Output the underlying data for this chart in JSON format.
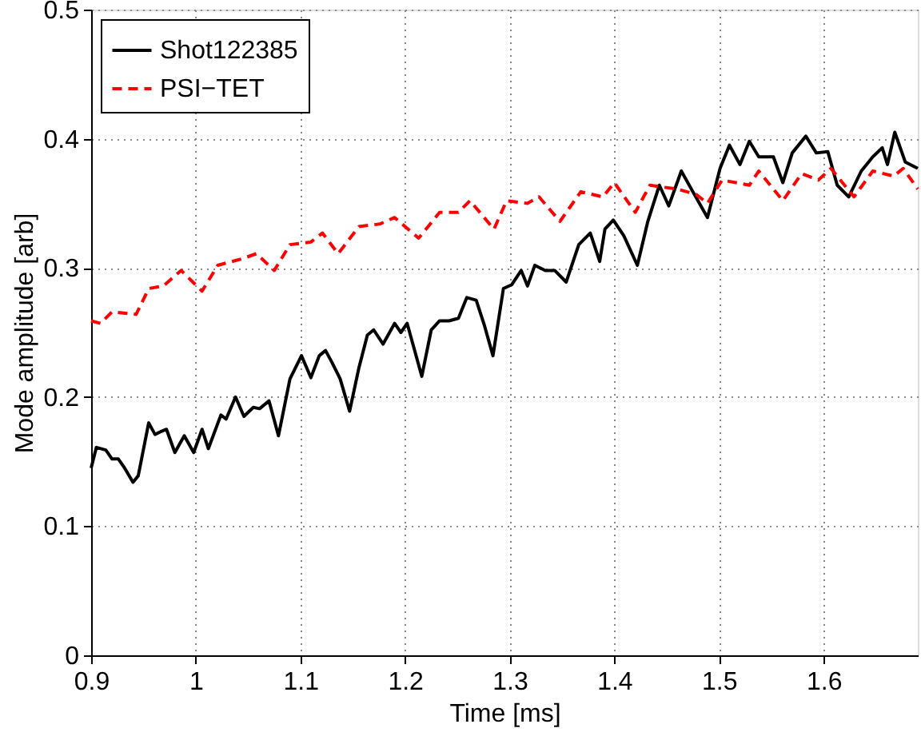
{
  "chart_data": {
    "type": "line",
    "xlabel": "Time [ms]",
    "ylabel": "Mode amplitude [arb]",
    "xlim": [
      0.9,
      1.69
    ],
    "ylim": [
      0,
      0.5
    ],
    "xticks": [
      0.9,
      1,
      1.1,
      1.2,
      1.3,
      1.4,
      1.5,
      1.6
    ],
    "yticks": [
      0,
      0.1,
      0.2,
      0.3,
      0.4,
      0.5
    ],
    "grid": true,
    "legend": "top left",
    "series": [
      {
        "name": "Shot122385",
        "color": "#000000",
        "line_style": "solid",
        "x": [
          0.9,
          0.905,
          0.914,
          0.92,
          0.926,
          0.932,
          0.94,
          0.945,
          0.955,
          0.961,
          0.966,
          0.972,
          0.98,
          0.989,
          0.998,
          1.006,
          1.012,
          1.024,
          1.029,
          1.038,
          1.046,
          1.055,
          1.061,
          1.07,
          1.079,
          1.09,
          1.101,
          1.11,
          1.118,
          1.124,
          1.13,
          1.138,
          1.147,
          1.156,
          1.164,
          1.17,
          1.179,
          1.19,
          1.196,
          1.202,
          1.216,
          1.225,
          1.233,
          1.242,
          1.251,
          1.259,
          1.268,
          1.276,
          1.284,
          1.294,
          1.302,
          1.311,
          1.317,
          1.324,
          1.334,
          1.343,
          1.354,
          1.366,
          1.377,
          1.386,
          1.391,
          1.399,
          1.409,
          1.422,
          1.432,
          1.443,
          1.452,
          1.464,
          1.475,
          1.489,
          1.501,
          1.51,
          1.52,
          1.529,
          1.538,
          1.552,
          1.561,
          1.57,
          1.583,
          1.593,
          1.604,
          1.613,
          1.624,
          1.636,
          1.647,
          1.656,
          1.661,
          1.668,
          1.678,
          1.69
        ],
        "values": [
          0.145,
          0.161,
          0.159,
          0.152,
          0.152,
          0.145,
          0.134,
          0.139,
          0.18,
          0.171,
          0.173,
          0.175,
          0.157,
          0.17,
          0.157,
          0.175,
          0.16,
          0.186,
          0.183,
          0.2,
          0.185,
          0.192,
          0.191,
          0.197,
          0.17,
          0.214,
          0.232,
          0.215,
          0.232,
          0.236,
          0.227,
          0.214,
          0.189,
          0.223,
          0.248,
          0.252,
          0.241,
          0.257,
          0.25,
          0.257,
          0.216,
          0.252,
          0.259,
          0.259,
          0.261,
          0.277,
          0.275,
          0.255,
          0.232,
          0.284,
          0.287,
          0.298,
          0.286,
          0.302,
          0.298,
          0.298,
          0.289,
          0.318,
          0.327,
          0.305,
          0.33,
          0.337,
          0.325,
          0.302,
          0.336,
          0.364,
          0.348,
          0.375,
          0.359,
          0.339,
          0.377,
          0.395,
          0.38,
          0.398,
          0.386,
          0.386,
          0.366,
          0.389,
          0.402,
          0.389,
          0.39,
          0.364,
          0.355,
          0.375,
          0.386,
          0.393,
          0.38,
          0.405,
          0.382,
          0.377
        ]
      },
      {
        "name": "PSI−TET",
        "color": "#ff0000",
        "line_style": "dashed",
        "x": [
          0.9,
          0.909,
          0.92,
          0.943,
          0.955,
          0.969,
          0.986,
          1.006,
          1.021,
          1.044,
          1.058,
          1.075,
          1.09,
          1.11,
          1.121,
          1.136,
          1.156,
          1.176,
          1.19,
          1.213,
          1.233,
          1.251,
          1.262,
          1.285,
          1.297,
          1.317,
          1.328,
          1.348,
          1.368,
          1.389,
          1.4,
          1.42,
          1.434,
          1.46,
          1.478,
          1.489,
          1.503,
          1.529,
          1.538,
          1.561,
          1.579,
          1.595,
          1.607,
          1.629,
          1.647,
          1.667,
          1.676,
          1.69
        ],
        "values": [
          0.259,
          0.257,
          0.266,
          0.264,
          0.284,
          0.286,
          0.298,
          0.282,
          0.302,
          0.307,
          0.311,
          0.298,
          0.318,
          0.32,
          0.327,
          0.311,
          0.332,
          0.334,
          0.339,
          0.323,
          0.343,
          0.343,
          0.352,
          0.33,
          0.352,
          0.35,
          0.355,
          0.336,
          0.359,
          0.355,
          0.366,
          0.343,
          0.364,
          0.361,
          0.357,
          0.35,
          0.368,
          0.364,
          0.375,
          0.352,
          0.373,
          0.368,
          0.377,
          0.355,
          0.375,
          0.371,
          0.377,
          0.361
        ]
      }
    ]
  }
}
